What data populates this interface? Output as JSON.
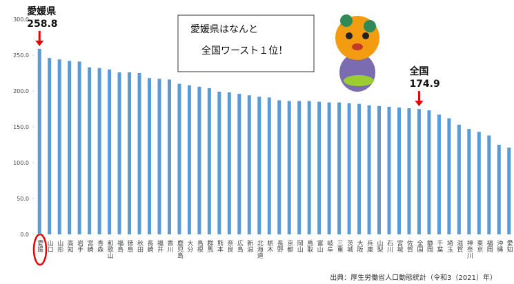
{
  "chart_data": {
    "type": "bar",
    "categories": [
      "愛媛",
      "山口",
      "山形",
      "高知",
      "岩手",
      "宮崎",
      "青森",
      "和歌山",
      "福島",
      "徳島",
      "秋田",
      "長崎",
      "福井",
      "香川",
      "鹿児島",
      "大分",
      "島根",
      "群馬",
      "熊本",
      "奈良",
      "広島",
      "新潟",
      "北海道",
      "栃木",
      "長野",
      "京都",
      "岡山",
      "鳥取",
      "富山",
      "岐阜",
      "三重",
      "茨城",
      "大阪",
      "兵庫",
      "山梨",
      "石川",
      "宮城",
      "佐賀",
      "全国",
      "静岡",
      "千葉",
      "埼玉",
      "滋賀",
      "神奈川",
      "東京",
      "福岡",
      "沖縄",
      "愛知"
    ],
    "values": [
      258.8,
      246,
      244,
      242,
      241,
      233,
      232,
      230,
      226,
      226,
      225,
      218,
      217,
      216,
      210,
      208,
      206,
      204,
      199,
      198,
      196,
      194,
      192,
      191,
      187,
      186,
      186,
      186,
      185,
      184,
      184,
      183,
      182,
      180,
      179,
      178,
      177,
      176,
      174.9,
      173,
      167,
      162,
      153,
      147,
      143,
      138,
      125,
      121
    ],
    "color": "#5b9bd5",
    "ylim": [
      0,
      300
    ],
    "yticks": [
      {
        "value": 0,
        "label": "0.0"
      },
      {
        "value": 50,
        "label": "50.0"
      },
      {
        "value": 100,
        "label": "100.0"
      },
      {
        "value": 150,
        "label": "150.0"
      },
      {
        "value": 200,
        "label": "200.0"
      },
      {
        "value": 250,
        "label": "250.0"
      },
      {
        "value": 300,
        "label": "300.0"
      }
    ],
    "annotations": [
      {
        "text": "愛媛県",
        "category": "愛媛"
      },
      {
        "text": "全国",
        "category": "全国"
      }
    ],
    "callout": [
      "愛媛県はなんと",
      "全国ワースト１位！"
    ],
    "source": "出典：厚生労働省人口動態統計（令和3（2021）年）"
  }
}
